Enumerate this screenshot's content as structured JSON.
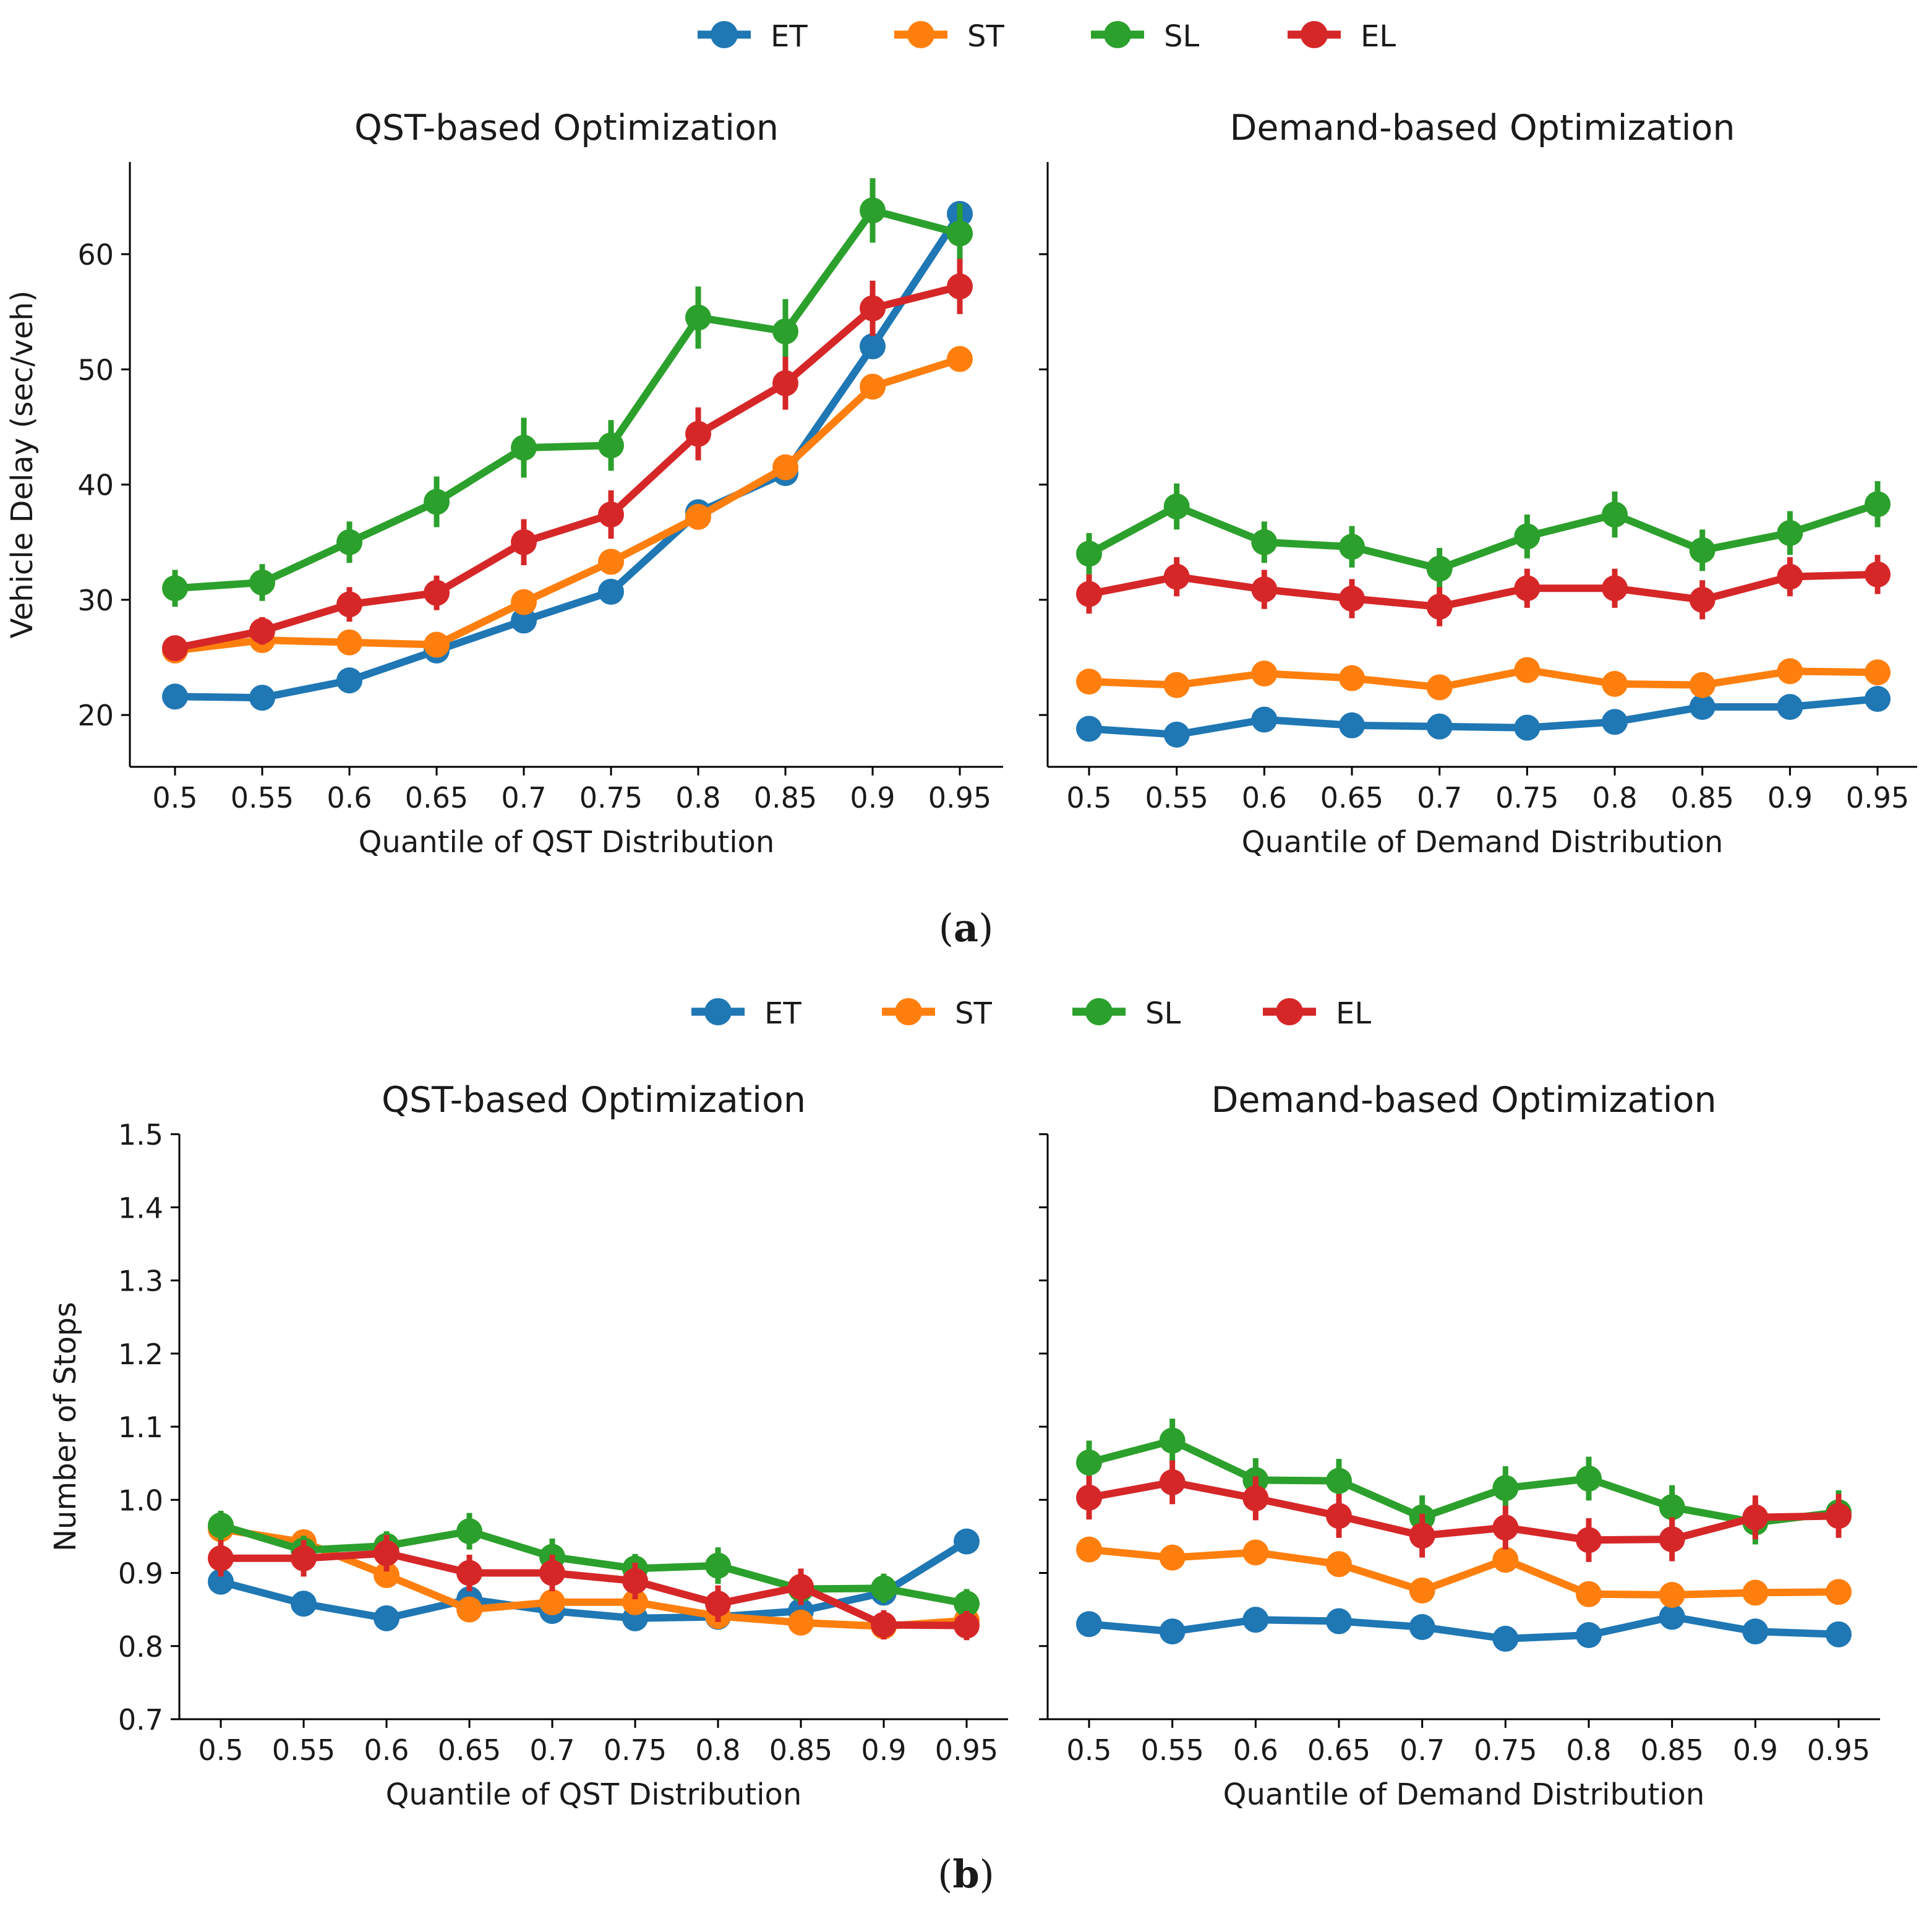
{
  "colors": {
    "ET": "#1f77b4",
    "ST": "#ff7f0e",
    "SL": "#2ca02c",
    "EL": "#d62728"
  },
  "legend_items": [
    "ET",
    "ST",
    "SL",
    "EL"
  ],
  "captions": {
    "a_label": "a",
    "b_label": "b"
  },
  "chart_data": [
    {
      "panel": "a",
      "subplot": "left",
      "type": "line",
      "title": "QST-based Optimization",
      "xlabel": "Quantile of QST Distribution",
      "ylabel": "Vehicle Delay (sec/veh)",
      "categories": [
        "0.5",
        "0.55",
        "0.6",
        "0.65",
        "0.7",
        "0.75",
        "0.8",
        "0.85",
        "0.9",
        "0.95"
      ],
      "ylim": [
        15.5,
        68
      ],
      "yticks": [
        "20",
        "30",
        "40",
        "50",
        "60"
      ],
      "series": [
        {
          "name": "ET",
          "values": [
            21.6,
            21.5,
            23.0,
            25.6,
            28.2,
            30.7,
            37.6,
            41.0,
            52.0,
            63.5
          ],
          "errors": [
            0,
            0,
            0,
            0,
            0,
            0,
            0,
            0,
            0,
            0
          ]
        },
        {
          "name": "ST",
          "values": [
            25.6,
            26.5,
            26.3,
            26.1,
            29.8,
            33.3,
            37.2,
            41.5,
            48.5,
            50.9
          ],
          "errors": [
            0,
            0,
            0,
            0,
            0,
            0,
            0,
            0,
            0,
            0
          ]
        },
        {
          "name": "SL",
          "values": [
            31.0,
            31.5,
            35.0,
            38.5,
            43.2,
            43.4,
            54.5,
            53.3,
            63.8,
            61.8
          ],
          "errors": [
            1.6,
            1.6,
            1.8,
            2.2,
            2.6,
            2.2,
            2.7,
            2.8,
            2.8,
            2.6
          ]
        },
        {
          "name": "EL",
          "values": [
            25.8,
            27.3,
            29.6,
            30.6,
            35.0,
            37.4,
            44.4,
            48.8,
            55.3,
            57.2
          ],
          "errors": [
            1.0,
            1.2,
            1.5,
            1.5,
            2.0,
            2.1,
            2.3,
            2.3,
            2.4,
            2.4
          ]
        }
      ]
    },
    {
      "panel": "a",
      "subplot": "right",
      "type": "line",
      "title": "Demand-based Optimization",
      "xlabel": "Quantile of Demand Distribution",
      "ylabel": "",
      "categories": [
        "0.5",
        "0.55",
        "0.6",
        "0.65",
        "0.7",
        "0.75",
        "0.8",
        "0.85",
        "0.9",
        "0.95"
      ],
      "ylim": [
        15.5,
        68
      ],
      "yticks": [],
      "series": [
        {
          "name": "ET",
          "values": [
            18.8,
            18.3,
            19.6,
            19.1,
            19.0,
            18.9,
            19.4,
            20.7,
            20.7,
            21.4
          ],
          "errors": [
            0,
            0,
            0,
            0,
            0,
            0,
            0,
            0,
            0,
            0
          ]
        },
        {
          "name": "ST",
          "values": [
            22.9,
            22.6,
            23.6,
            23.2,
            22.4,
            23.9,
            22.7,
            22.6,
            23.8,
            23.7
          ],
          "errors": [
            0,
            0,
            0,
            0,
            0,
            0,
            0,
            0,
            0,
            0
          ]
        },
        {
          "name": "SL",
          "values": [
            34.0,
            38.1,
            35.0,
            34.6,
            32.7,
            35.5,
            37.4,
            34.3,
            35.8,
            38.3
          ],
          "errors": [
            1.8,
            2.0,
            1.8,
            1.8,
            1.8,
            1.9,
            2.0,
            1.8,
            1.9,
            2.0
          ]
        },
        {
          "name": "EL",
          "values": [
            30.5,
            32.0,
            30.9,
            30.1,
            29.4,
            31.0,
            31.0,
            30.0,
            32.0,
            32.2
          ],
          "errors": [
            1.7,
            1.7,
            1.7,
            1.7,
            1.7,
            1.7,
            1.7,
            1.7,
            1.7,
            1.7
          ]
        }
      ]
    },
    {
      "panel": "b",
      "subplot": "left",
      "type": "line",
      "title": "QST-based Optimization",
      "xlabel": "Quantile of QST Distribution",
      "ylabel": "Number of Stops",
      "categories": [
        "0.5",
        "0.55",
        "0.6",
        "0.65",
        "0.7",
        "0.75",
        "0.8",
        "0.85",
        "0.9",
        "0.95"
      ],
      "ylim": [
        0.7,
        1.5
      ],
      "yticks": [
        "0.7",
        "0.8",
        "0.9",
        "1.0",
        "1.1",
        "1.2",
        "1.3",
        "1.4",
        "1.5"
      ],
      "series": [
        {
          "name": "ET",
          "values": [
            0.888,
            0.858,
            0.838,
            0.864,
            0.848,
            0.838,
            0.84,
            0.848,
            0.873,
            0.943
          ],
          "errors": [
            0,
            0,
            0,
            0,
            0,
            0,
            0,
            0,
            0,
            0
          ]
        },
        {
          "name": "ST",
          "values": [
            0.96,
            0.942,
            0.897,
            0.85,
            0.86,
            0.86,
            0.841,
            0.832,
            0.827,
            0.835
          ],
          "errors": [
            0,
            0,
            0,
            0,
            0,
            0,
            0,
            0,
            0,
            0
          ]
        },
        {
          "name": "SL",
          "values": [
            0.965,
            0.931,
            0.937,
            0.957,
            0.922,
            0.906,
            0.91,
            0.878,
            0.879,
            0.858
          ],
          "errors": [
            0.02,
            0.02,
            0.02,
            0.025,
            0.025,
            0.02,
            0.025,
            0.02,
            0.02,
            0.02
          ]
        },
        {
          "name": "EL",
          "values": [
            0.92,
            0.92,
            0.927,
            0.9,
            0.9,
            0.889,
            0.858,
            0.881,
            0.829,
            0.828
          ],
          "errors": [
            0.025,
            0.025,
            0.025,
            0.025,
            0.025,
            0.025,
            0.025,
            0.025,
            0.02,
            0.02
          ]
        }
      ]
    },
    {
      "panel": "b",
      "subplot": "right",
      "type": "line",
      "title": "Demand-based Optimization",
      "xlabel": "Quantile of Demand Distribution",
      "ylabel": "",
      "categories": [
        "0.5",
        "0.55",
        "0.6",
        "0.65",
        "0.7",
        "0.75",
        "0.8",
        "0.85",
        "0.9",
        "0.95"
      ],
      "ylim": [
        0.7,
        1.5
      ],
      "yticks": [],
      "series": [
        {
          "name": "ET",
          "values": [
            0.83,
            0.82,
            0.836,
            0.834,
            0.826,
            0.81,
            0.815,
            0.84,
            0.82,
            0.816
          ],
          "errors": [
            0,
            0,
            0,
            0,
            0,
            0,
            0,
            0,
            0,
            0
          ]
        },
        {
          "name": "ST",
          "values": [
            0.932,
            0.921,
            0.928,
            0.912,
            0.876,
            0.918,
            0.871,
            0.87,
            0.873,
            0.874
          ],
          "errors": [
            0,
            0,
            0,
            0,
            0,
            0,
            0,
            0,
            0,
            0
          ]
        },
        {
          "name": "SL",
          "values": [
            1.051,
            1.081,
            1.027,
            1.026,
            0.976,
            1.016,
            1.029,
            0.99,
            0.969,
            0.983
          ],
          "errors": [
            0.03,
            0.03,
            0.03,
            0.03,
            0.03,
            0.03,
            0.03,
            0.03,
            0.03,
            0.03
          ]
        },
        {
          "name": "EL",
          "values": [
            1.003,
            1.024,
            1.002,
            0.978,
            0.951,
            0.962,
            0.945,
            0.946,
            0.976,
            0.978
          ],
          "errors": [
            0.03,
            0.03,
            0.03,
            0.03,
            0.03,
            0.03,
            0.03,
            0.03,
            0.03,
            0.03
          ]
        }
      ]
    }
  ]
}
